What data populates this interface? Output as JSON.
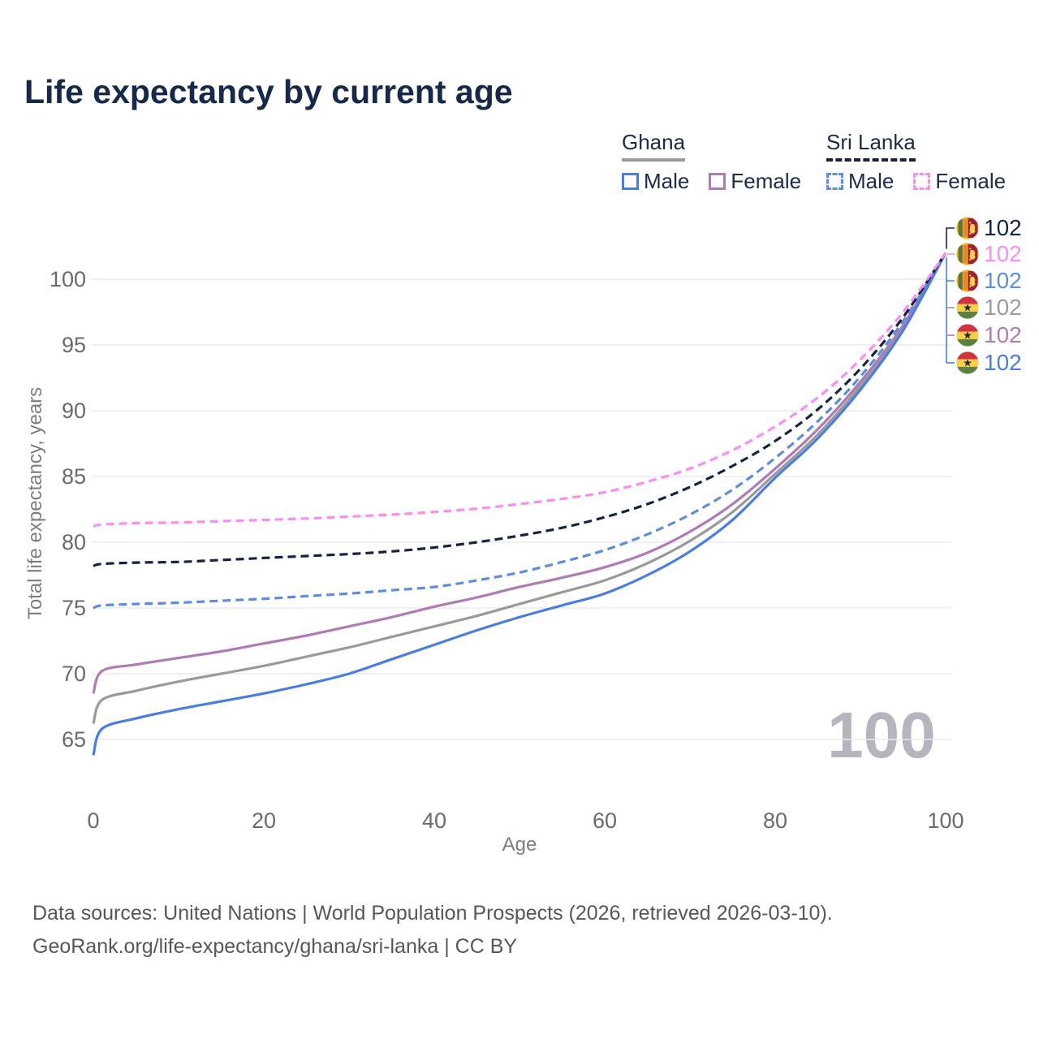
{
  "title": "Life expectancy by current age",
  "legend": {
    "groups": [
      {
        "country": "Ghana",
        "line_style": "solid",
        "underline_color": "#9a9a9a",
        "items": [
          {
            "label": "Male",
            "color": "#4a7de0"
          },
          {
            "label": "Female",
            "color": "#b07ab4"
          }
        ]
      },
      {
        "country": "Sri Lanka",
        "line_style": "dashed",
        "underline_color": "#16253f",
        "items": [
          {
            "label": "Male",
            "color": "#5d8ddd"
          },
          {
            "label": "Female",
            "color": "#fb8df2"
          }
        ]
      }
    ]
  },
  "chart_data": {
    "type": "line",
    "title": "Life expectancy by current age",
    "xlabel": "Age",
    "ylabel": "Total life expectancy, years",
    "xlim": [
      0,
      100
    ],
    "ylim": [
      63,
      103
    ],
    "x_ticks": [
      0,
      20,
      40,
      60,
      80,
      100
    ],
    "y_ticks": [
      65,
      70,
      75,
      80,
      85,
      90,
      95,
      100
    ],
    "grid": "horizontal",
    "legend_position": "top-right",
    "watermark": "100",
    "ages": [
      0,
      1,
      5,
      10,
      15,
      20,
      25,
      30,
      35,
      40,
      45,
      50,
      55,
      60,
      65,
      70,
      75,
      80,
      85,
      90,
      95,
      100
    ],
    "series": [
      {
        "name": "Sri Lanka Total",
        "country": "sri-lanka",
        "color": "#16253f",
        "dashed": true,
        "end_label": "102",
        "values": [
          78.2,
          78.35,
          78.45,
          78.5,
          78.65,
          78.8,
          78.95,
          79.1,
          79.3,
          79.6,
          80.0,
          80.5,
          81.1,
          81.9,
          82.9,
          84.2,
          85.8,
          87.7,
          90.1,
          93.2,
          97.1,
          102
        ]
      },
      {
        "name": "Sri Lanka Female",
        "country": "sri-lanka",
        "color": "#fb8df2",
        "dashed": true,
        "end_label": "102",
        "values": [
          81.2,
          81.35,
          81.45,
          81.5,
          81.6,
          81.7,
          81.8,
          81.95,
          82.1,
          82.3,
          82.55,
          82.9,
          83.3,
          83.8,
          84.6,
          85.6,
          87.0,
          88.8,
          91.0,
          93.9,
          97.5,
          102
        ]
      },
      {
        "name": "Sri Lanka Male",
        "country": "sri-lanka",
        "color": "#5d8ddd",
        "dashed": true,
        "end_label": "102",
        "values": [
          75.0,
          75.2,
          75.3,
          75.4,
          75.55,
          75.7,
          75.9,
          76.1,
          76.35,
          76.6,
          77.1,
          77.7,
          78.5,
          79.4,
          80.6,
          82.1,
          84.0,
          86.4,
          89.2,
          92.6,
          96.8,
          102
        ]
      },
      {
        "name": "Ghana Total",
        "country": "ghana",
        "color": "#9a9a9a",
        "dashed": false,
        "end_label": "102",
        "values": [
          66.2,
          68.0,
          68.7,
          69.4,
          70.0,
          70.6,
          71.3,
          72.0,
          72.8,
          73.6,
          74.4,
          75.3,
          76.2,
          77.1,
          78.4,
          80.1,
          82.3,
          85.2,
          88.2,
          91.9,
          96.3,
          102
        ]
      },
      {
        "name": "Ghana Female",
        "country": "ghana",
        "color": "#b07ab4",
        "dashed": false,
        "end_label": "102",
        "values": [
          68.5,
          70.2,
          70.7,
          71.2,
          71.7,
          72.3,
          72.9,
          73.6,
          74.3,
          75.1,
          75.8,
          76.6,
          77.3,
          78.1,
          79.2,
          80.8,
          82.9,
          85.6,
          88.6,
          92.2,
          96.5,
          102
        ]
      },
      {
        "name": "Ghana Male",
        "country": "ghana",
        "color": "#4a7de0",
        "dashed": false,
        "end_label": "102",
        "values": [
          63.8,
          65.8,
          66.6,
          67.3,
          67.9,
          68.5,
          69.2,
          70.0,
          71.1,
          72.2,
          73.3,
          74.3,
          75.2,
          76.1,
          77.5,
          79.3,
          81.7,
          84.9,
          87.9,
          91.6,
          96.1,
          102
        ]
      }
    ]
  },
  "footer": {
    "line1": "Data sources: United Nations | World Population Prospects (2026, retrieved 2026-03-10).",
    "line2": "GeoRank.org/life-expectancy/ghana/sri-lanka | CC BY"
  }
}
